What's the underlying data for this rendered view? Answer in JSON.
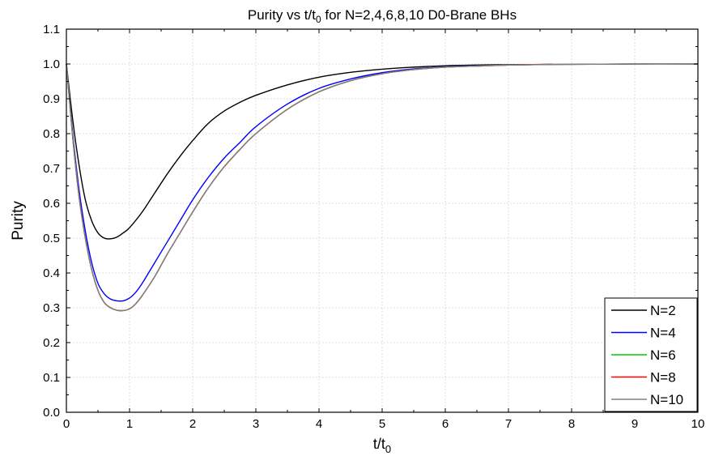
{
  "chart_data": {
    "type": "line",
    "title": "Purity vs t/t",
    "title_sub": "0",
    "title_rest": " for N=2,4,6,8,10 D0-Brane BHs",
    "xlabel": "t/t",
    "xlabel_sub": "0",
    "ylabel": "Purity",
    "xlim": [
      0,
      10
    ],
    "ylim": [
      0,
      1.1
    ],
    "xticks": [
      "0",
      "1",
      "2",
      "3",
      "4",
      "5",
      "6",
      "7",
      "8",
      "9",
      "10"
    ],
    "yticks": [
      "0.0",
      "0.1",
      "0.2",
      "0.3",
      "0.4",
      "0.5",
      "0.6",
      "0.7",
      "0.8",
      "0.9",
      "1.0",
      "1.1"
    ],
    "grid": true,
    "legend_position": "bottom-right",
    "series": [
      {
        "name": "N=2",
        "color": "#000000",
        "x": [
          0,
          0.1,
          0.2,
          0.3,
          0.4,
          0.5,
          0.6,
          0.7,
          0.8,
          0.9,
          1.0,
          1.2,
          1.4,
          1.6,
          1.8,
          2.0,
          2.25,
          2.5,
          2.75,
          3.0,
          3.5,
          4.0,
          4.5,
          5.0,
          5.5,
          6.0,
          6.5,
          7.0,
          8.0,
          9.0,
          10.0
        ],
        "y": [
          1.0,
          0.84,
          0.71,
          0.61,
          0.55,
          0.515,
          0.5,
          0.498,
          0.503,
          0.515,
          0.53,
          0.575,
          0.63,
          0.685,
          0.735,
          0.78,
          0.83,
          0.865,
          0.89,
          0.91,
          0.94,
          0.962,
          0.976,
          0.985,
          0.991,
          0.995,
          0.997,
          0.998,
          0.999,
          1.0,
          1.0
        ]
      },
      {
        "name": "N=4",
        "color": "#0000ff",
        "x": [
          0,
          0.1,
          0.2,
          0.3,
          0.4,
          0.5,
          0.6,
          0.7,
          0.8,
          0.9,
          1.0,
          1.1,
          1.2,
          1.4,
          1.6,
          1.8,
          2.0,
          2.25,
          2.5,
          2.75,
          3.0,
          3.5,
          4.0,
          4.5,
          5.0,
          5.5,
          6.0,
          6.5,
          7.0,
          7.7
        ],
        "y": [
          1.0,
          0.8,
          0.64,
          0.52,
          0.43,
          0.37,
          0.34,
          0.325,
          0.32,
          0.32,
          0.328,
          0.345,
          0.37,
          0.43,
          0.49,
          0.55,
          0.61,
          0.675,
          0.73,
          0.775,
          0.82,
          0.885,
          0.93,
          0.957,
          0.975,
          0.986,
          0.992,
          0.995,
          0.997,
          0.999
        ]
      },
      {
        "name": "N=6",
        "color": "#00cc00",
        "x": [
          0,
          0.1,
          0.2,
          0.3,
          0.4,
          0.5,
          0.6,
          0.7,
          0.8,
          0.9,
          1.0,
          1.1,
          1.2,
          1.4,
          1.6,
          1.8,
          2.0,
          2.25,
          2.5,
          2.75,
          3.0,
          3.5,
          4.0,
          4.5,
          5.0,
          5.5,
          6.0,
          6.5,
          7.0,
          7.7
        ],
        "y": [
          1.0,
          0.79,
          0.62,
          0.5,
          0.41,
          0.35,
          0.315,
          0.3,
          0.293,
          0.292,
          0.297,
          0.312,
          0.335,
          0.39,
          0.455,
          0.515,
          0.575,
          0.645,
          0.705,
          0.755,
          0.8,
          0.87,
          0.92,
          0.952,
          0.972,
          0.984,
          0.991,
          0.994,
          0.997,
          0.999
        ]
      },
      {
        "name": "N=8",
        "color": "#ff0000",
        "x": [
          0,
          0.1,
          0.2,
          0.3,
          0.4,
          0.5,
          0.6,
          0.7,
          0.8,
          0.9,
          1.0,
          1.1,
          1.2,
          1.4,
          1.6,
          1.8,
          2.0,
          2.25,
          2.5,
          2.75,
          3.0,
          3.5,
          4.0,
          4.5,
          5.0,
          5.5,
          6.0,
          6.5,
          7.0,
          7.7
        ],
        "y": [
          1.0,
          0.79,
          0.62,
          0.5,
          0.41,
          0.35,
          0.315,
          0.3,
          0.293,
          0.292,
          0.297,
          0.312,
          0.335,
          0.39,
          0.455,
          0.515,
          0.575,
          0.645,
          0.705,
          0.755,
          0.8,
          0.87,
          0.92,
          0.952,
          0.972,
          0.984,
          0.991,
          0.994,
          0.997,
          0.999
        ]
      },
      {
        "name": "N=10",
        "color": "#808080",
        "x": [
          0,
          0.1,
          0.2,
          0.3,
          0.4,
          0.5,
          0.6,
          0.7,
          0.8,
          0.9,
          1.0,
          1.1,
          1.2,
          1.4,
          1.6,
          1.8,
          2.0,
          2.25,
          2.5,
          2.75,
          3.0,
          3.5,
          4.0,
          4.5,
          5.0,
          5.5,
          6.0,
          6.5,
          7.0,
          8.0,
          9.0,
          10.0
        ],
        "y": [
          1.0,
          0.79,
          0.62,
          0.5,
          0.41,
          0.35,
          0.315,
          0.3,
          0.293,
          0.292,
          0.297,
          0.312,
          0.335,
          0.39,
          0.455,
          0.515,
          0.575,
          0.645,
          0.705,
          0.755,
          0.8,
          0.87,
          0.92,
          0.952,
          0.972,
          0.984,
          0.991,
          0.994,
          0.997,
          0.999,
          1.0,
          1.0
        ]
      }
    ]
  }
}
